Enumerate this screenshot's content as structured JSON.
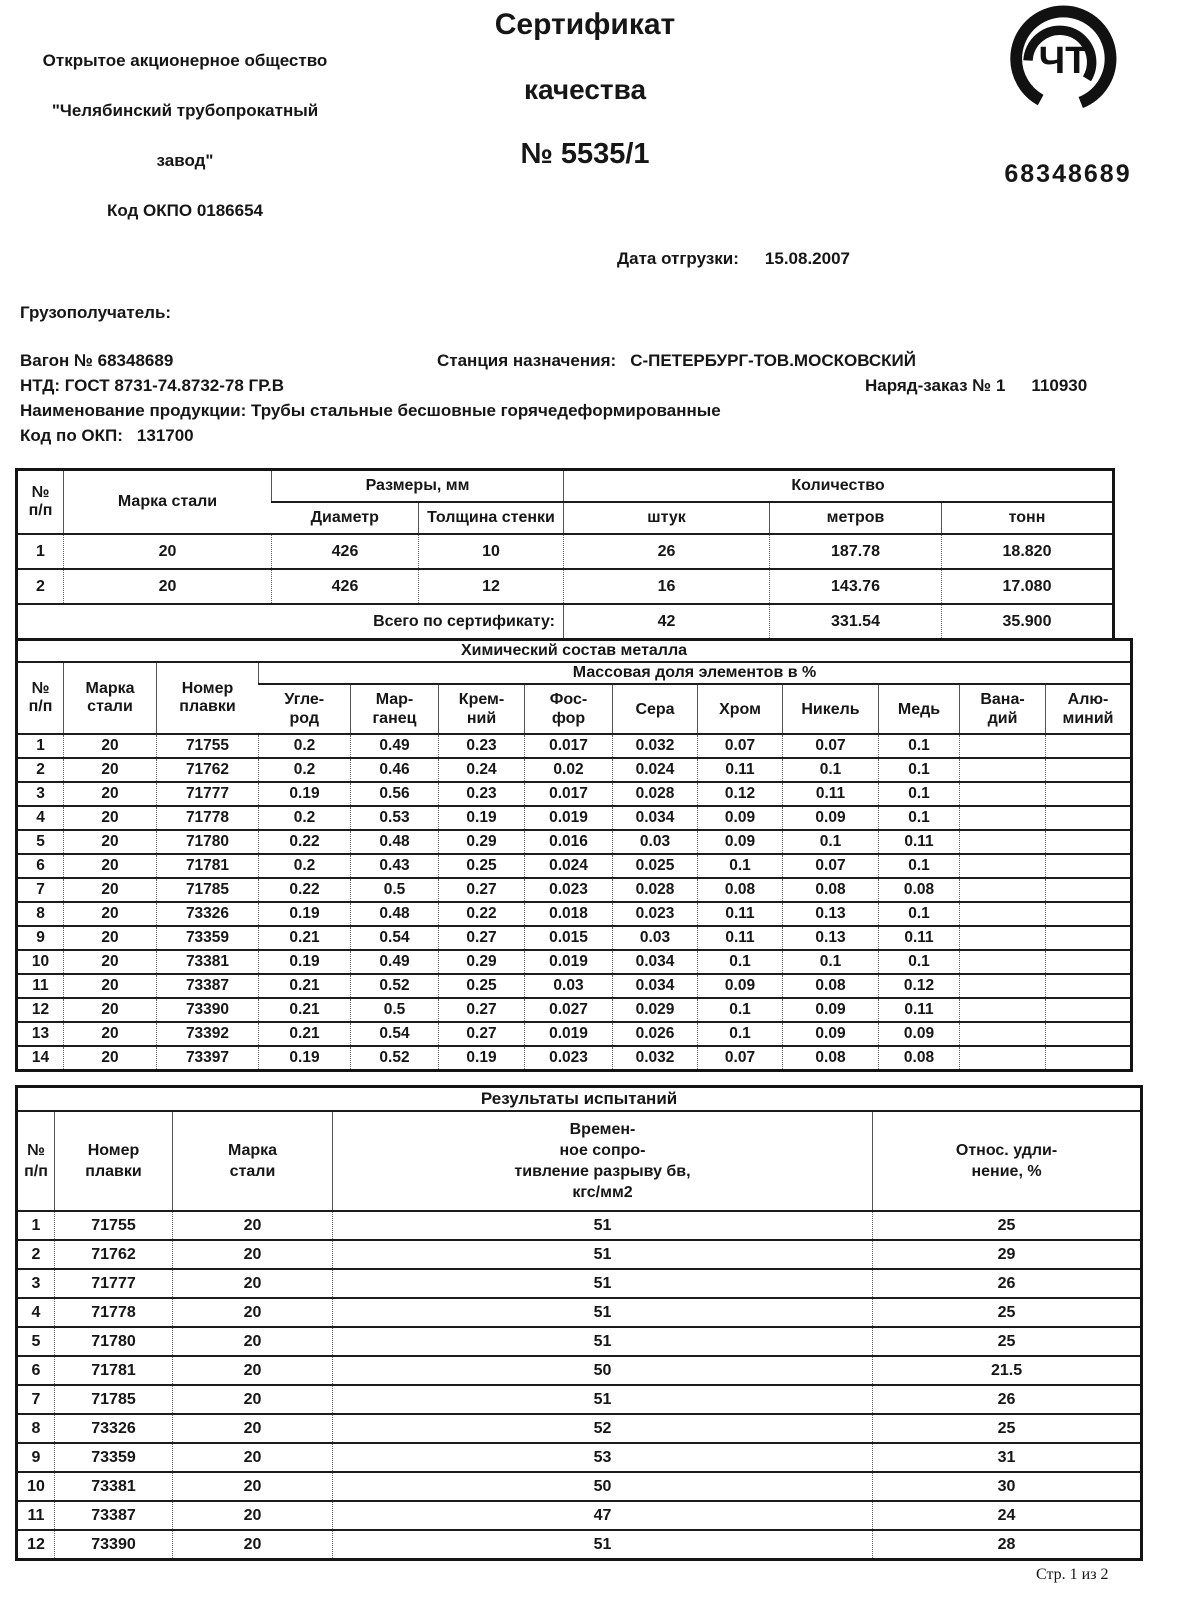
{
  "header": {
    "company": [
      "Открытое акционерное общество",
      "\"Челябинский трубопрокатный завод\"",
      "Код ОКПО 0186654"
    ],
    "title": [
      "Сертификат",
      "качества",
      "№ 5535/1"
    ],
    "logo_text": "ЧТ",
    "wagon_big_number": "68348689"
  },
  "shipping": {
    "ship_date_label": "Дата отгрузки:",
    "ship_date": "15.08.2007",
    "consignee_label": "Грузополучатель:",
    "wagon": "Вагон № 68348689",
    "station_label": "Станция назначения:",
    "station_value": "С-ПЕТЕРБУРГ-ТОВ.МОСКОВСКИЙ",
    "ntd": "НТД: ГОСТ 8731-74.8732-78 ГР.В",
    "order_label": "Наряд-заказ № 1",
    "order_value": "110930",
    "product": "Наименование продукции: Трубы стальные бесшовные горячедеформированные",
    "okp_label": "Код по ОКП:",
    "okp_value": "131700"
  },
  "sizes_table": {
    "headers": {
      "num": "№\nп/п",
      "steel": "Марка стали",
      "sizes_group": "Размеры, мм",
      "qty_group": "Количество",
      "diameter": "Диаметр",
      "wall": "Толщина стенки",
      "pieces": "штук",
      "meters": "метров",
      "tons": "тонн"
    },
    "rows": [
      [
        "1",
        "20",
        "426",
        "10",
        "26",
        "187.78",
        "18.820"
      ],
      [
        "2",
        "20",
        "426",
        "12",
        "16",
        "143.76",
        "17.080"
      ]
    ],
    "total": {
      "label": "Всего по сертификату:",
      "pieces": "42",
      "meters": "331.54",
      "tons": "35.900"
    }
  },
  "chem_table": {
    "title": "Химический состав металла",
    "headers": {
      "num": "№\nп/п",
      "steel": "Марка\nстали",
      "heat": "Номер\nплавки",
      "mass_fraction": "Массовая доля элементов в %",
      "elements": [
        "Угле-\nрод",
        "Мар-\nганец",
        "Крем-\nний",
        "Фос-\nфор",
        "Сера",
        "Хром",
        "Никель",
        "Медь",
        "Вана-\nдий",
        "Алю-\nминий"
      ]
    },
    "rows": [
      [
        "1",
        "20",
        "71755",
        "0.2",
        "0.49",
        "0.23",
        "0.017",
        "0.032",
        "0.07",
        "0.07",
        "0.1",
        "",
        ""
      ],
      [
        "2",
        "20",
        "71762",
        "0.2",
        "0.46",
        "0.24",
        "0.02",
        "0.024",
        "0.11",
        "0.1",
        "0.1",
        "",
        ""
      ],
      [
        "3",
        "20",
        "71777",
        "0.19",
        "0.56",
        "0.23",
        "0.017",
        "0.028",
        "0.12",
        "0.11",
        "0.1",
        "",
        ""
      ],
      [
        "4",
        "20",
        "71778",
        "0.2",
        "0.53",
        "0.19",
        "0.019",
        "0.034",
        "0.09",
        "0.09",
        "0.1",
        "",
        ""
      ],
      [
        "5",
        "20",
        "71780",
        "0.22",
        "0.48",
        "0.29",
        "0.016",
        "0.03",
        "0.09",
        "0.1",
        "0.11",
        "",
        ""
      ],
      [
        "6",
        "20",
        "71781",
        "0.2",
        "0.43",
        "0.25",
        "0.024",
        "0.025",
        "0.1",
        "0.07",
        "0.1",
        "",
        ""
      ],
      [
        "7",
        "20",
        "71785",
        "0.22",
        "0.5",
        "0.27",
        "0.023",
        "0.028",
        "0.08",
        "0.08",
        "0.08",
        "",
        ""
      ],
      [
        "8",
        "20",
        "73326",
        "0.19",
        "0.48",
        "0.22",
        "0.018",
        "0.023",
        "0.11",
        "0.13",
        "0.1",
        "",
        ""
      ],
      [
        "9",
        "20",
        "73359",
        "0.21",
        "0.54",
        "0.27",
        "0.015",
        "0.03",
        "0.11",
        "0.13",
        "0.11",
        "",
        ""
      ],
      [
        "10",
        "20",
        "73381",
        "0.19",
        "0.49",
        "0.29",
        "0.019",
        "0.034",
        "0.1",
        "0.1",
        "0.1",
        "",
        ""
      ],
      [
        "11",
        "20",
        "73387",
        "0.21",
        "0.52",
        "0.25",
        "0.03",
        "0.034",
        "0.09",
        "0.08",
        "0.12",
        "",
        ""
      ],
      [
        "12",
        "20",
        "73390",
        "0.21",
        "0.5",
        "0.27",
        "0.027",
        "0.029",
        "0.1",
        "0.09",
        "0.11",
        "",
        ""
      ],
      [
        "13",
        "20",
        "73392",
        "0.21",
        "0.54",
        "0.27",
        "0.019",
        "0.026",
        "0.1",
        "0.09",
        "0.09",
        "",
        ""
      ],
      [
        "14",
        "20",
        "73397",
        "0.19",
        "0.52",
        "0.19",
        "0.023",
        "0.032",
        "0.07",
        "0.08",
        "0.08",
        "",
        ""
      ]
    ]
  },
  "results_table": {
    "title": "Результаты испытаний",
    "headers": {
      "num": "№\nп/п",
      "heat": "Номер\nплавки",
      "steel": "Марка\nстали",
      "strength": "Времен-\nное сопро-\nтивление разрыву бв,\nкгс/мм2",
      "elongation": "Относ. удли-\nнение, %"
    },
    "rows": [
      [
        "1",
        "71755",
        "20",
        "51",
        "25"
      ],
      [
        "2",
        "71762",
        "20",
        "51",
        "29"
      ],
      [
        "3",
        "71777",
        "20",
        "51",
        "26"
      ],
      [
        "4",
        "71778",
        "20",
        "51",
        "25"
      ],
      [
        "5",
        "71780",
        "20",
        "51",
        "25"
      ],
      [
        "6",
        "71781",
        "20",
        "50",
        "21.5"
      ],
      [
        "7",
        "71785",
        "20",
        "51",
        "26"
      ],
      [
        "8",
        "73326",
        "20",
        "52",
        "25"
      ],
      [
        "9",
        "73359",
        "20",
        "53",
        "31"
      ],
      [
        "10",
        "73381",
        "20",
        "50",
        "30"
      ],
      [
        "11",
        "73387",
        "20",
        "47",
        "24"
      ],
      [
        "12",
        "73390",
        "20",
        "51",
        "28"
      ]
    ]
  },
  "footer": {
    "page_indicator": "Стр. 1 из 2"
  }
}
